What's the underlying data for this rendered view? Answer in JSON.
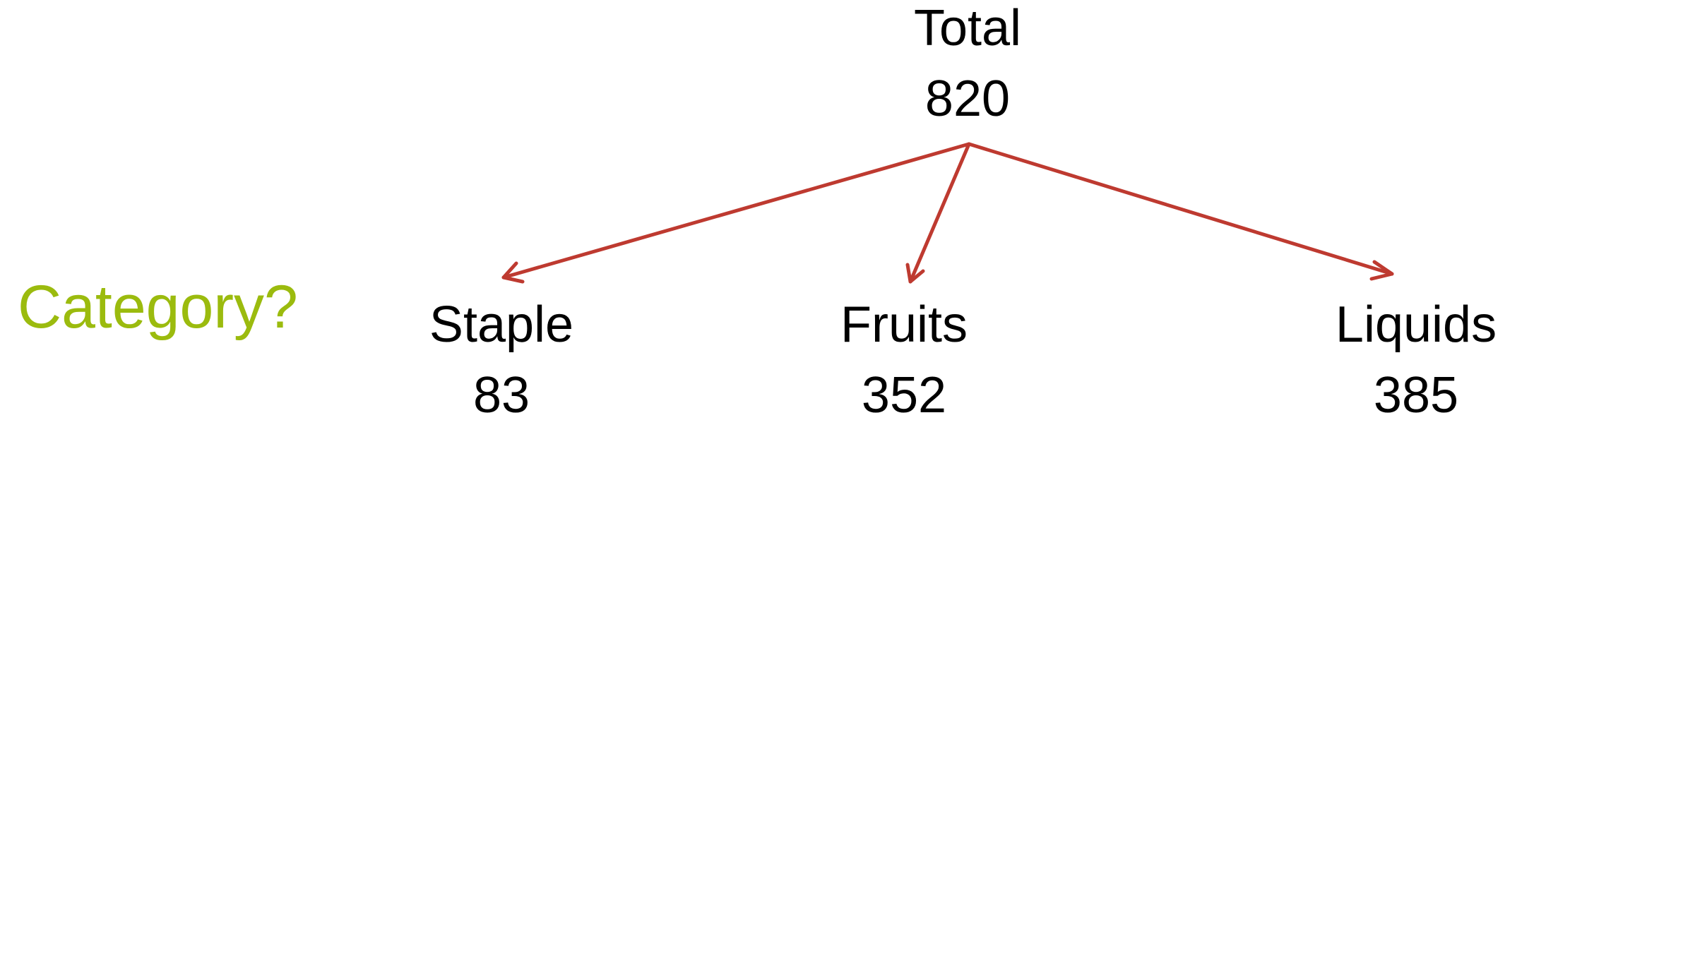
{
  "diagram": {
    "side_label": "Category?",
    "side_label_color": "#9bbb0e",
    "edge_color": "#be3a30",
    "root": {
      "label": "Total",
      "value": "820"
    },
    "children": [
      {
        "label": "Staple",
        "value": "83"
      },
      {
        "label": "Fruits",
        "value": "352"
      },
      {
        "label": "Liquids",
        "value": "385"
      }
    ]
  }
}
